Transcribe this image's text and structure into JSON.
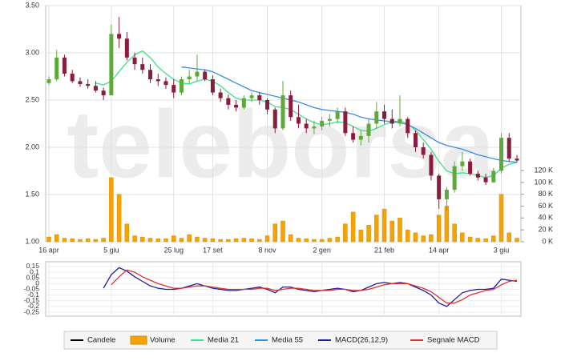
{
  "watermark": "teleborsa",
  "chart_data": [
    {
      "type": "candlestick",
      "categories": [
        "16 apr",
        null,
        null,
        null,
        null,
        null,
        null,
        null,
        "5 giu",
        null,
        null,
        null,
        null,
        null,
        null,
        null,
        "25 lug",
        null,
        null,
        null,
        null,
        "17 set",
        null,
        null,
        null,
        null,
        null,
        null,
        "8 nov",
        null,
        null,
        null,
        null,
        null,
        null,
        "2 gen",
        null,
        null,
        null,
        null,
        null,
        null,
        null,
        "21 feb",
        null,
        null,
        null,
        null,
        null,
        null,
        "14 apr",
        null,
        null,
        null,
        null,
        null,
        null,
        null,
        "3 giu",
        null,
        null
      ],
      "ylim": [
        1,
        3.5
      ],
      "yticks": [
        {
          "value": 1,
          "label": "1.00"
        },
        {
          "value": 1.5,
          "label": "1.50"
        },
        {
          "value": 2,
          "label": "2.00"
        },
        {
          "value": 2.5,
          "label": "2.50"
        },
        {
          "value": 3,
          "label": "3.00"
        },
        {
          "value": 3.5,
          "label": "3.50"
        }
      ],
      "y2lim": [
        0,
        398
      ],
      "y2ticks": [
        {
          "value": 0,
          "label": "0 K"
        },
        {
          "value": 20,
          "label": "20 K"
        },
        {
          "value": 40,
          "label": "40 K"
        },
        {
          "value": 60,
          "label": "60 K"
        },
        {
          "value": 80,
          "label": "80 K"
        },
        {
          "value": 100,
          "label": "100 K"
        },
        {
          "value": 120,
          "label": "120 K"
        }
      ],
      "grid": true,
      "up_color": "#5fa83a",
      "down_color": "#8a1c3c",
      "series": [
        {
          "name": "Candele",
          "color": "#000000",
          "open": [
            2.68,
            2.72,
            2.95,
            2.78,
            2.7,
            2.67,
            2.65,
            2.6,
            2.55,
            3.2,
            3.15,
            2.95,
            2.88,
            2.82,
            2.72,
            2.7,
            2.66,
            2.58,
            2.72,
            2.75,
            2.8,
            2.72,
            2.58,
            2.52,
            2.45,
            2.42,
            2.52,
            2.55,
            2.5,
            2.4,
            2.2,
            2.55,
            2.32,
            2.25,
            2.2,
            2.22,
            2.28,
            2.3,
            2.38,
            2.15,
            2.08,
            2.12,
            2.25,
            2.38,
            2.3,
            2.25,
            2.3,
            2.15,
            2.0,
            1.92,
            1.7,
            1.45,
            1.55,
            1.8,
            1.85,
            1.72,
            1.68,
            1.63,
            1.75,
            2.1,
            1.88
          ],
          "high": [
            2.75,
            3.03,
            2.98,
            2.82,
            2.74,
            2.72,
            2.7,
            2.63,
            3.3,
            3.38,
            3.22,
            3.0,
            2.95,
            2.88,
            2.78,
            2.74,
            2.72,
            2.75,
            2.82,
            2.98,
            2.82,
            2.76,
            2.62,
            2.56,
            2.5,
            2.55,
            2.58,
            2.58,
            2.52,
            2.42,
            2.7,
            2.6,
            2.45,
            2.3,
            2.28,
            2.32,
            2.35,
            2.42,
            2.42,
            2.22,
            2.18,
            2.3,
            2.48,
            2.45,
            2.4,
            2.55,
            2.32,
            2.18,
            2.05,
            1.95,
            1.72,
            1.58,
            1.85,
            1.95,
            1.88,
            1.75,
            1.72,
            1.78,
            2.15,
            2.15,
            1.92
          ],
          "low": [
            2.66,
            2.7,
            2.75,
            2.68,
            2.64,
            2.62,
            2.58,
            2.5,
            2.55,
            3.05,
            2.92,
            2.82,
            2.78,
            2.68,
            2.65,
            2.62,
            2.52,
            2.55,
            2.68,
            2.7,
            2.7,
            2.55,
            2.48,
            2.4,
            2.38,
            2.4,
            2.48,
            2.45,
            2.35,
            2.15,
            2.18,
            2.28,
            2.2,
            2.15,
            2.14,
            2.18,
            2.22,
            2.25,
            2.12,
            2.05,
            2.02,
            2.05,
            2.2,
            2.25,
            2.2,
            2.22,
            2.1,
            1.95,
            1.88,
            1.65,
            1.35,
            1.33,
            1.52,
            1.75,
            1.7,
            1.65,
            1.6,
            1.62,
            1.72,
            1.85,
            1.84
          ],
          "close": [
            2.72,
            2.95,
            2.78,
            2.7,
            2.67,
            2.65,
            2.6,
            2.55,
            3.2,
            3.15,
            2.95,
            2.88,
            2.82,
            2.72,
            2.7,
            2.66,
            2.58,
            2.72,
            2.75,
            2.8,
            2.72,
            2.58,
            2.52,
            2.45,
            2.42,
            2.52,
            2.55,
            2.5,
            2.4,
            2.2,
            2.55,
            2.32,
            2.25,
            2.2,
            2.22,
            2.28,
            2.3,
            2.38,
            2.15,
            2.08,
            2.12,
            2.25,
            2.38,
            2.3,
            2.25,
            2.3,
            2.15,
            2.0,
            1.92,
            1.7,
            1.45,
            1.55,
            1.8,
            1.85,
            1.72,
            1.68,
            1.63,
            1.75,
            2.1,
            1.88,
            1.86
          ]
        },
        {
          "name": "Volume",
          "color": "#f5a300",
          "axis": "y2",
          "values": [
            8,
            12,
            6,
            5,
            4,
            5,
            4,
            6,
            108,
            80,
            30,
            10,
            8,
            6,
            5,
            5,
            10,
            6,
            12,
            8,
            6,
            5,
            4,
            4,
            5,
            6,
            5,
            4,
            10,
            30,
            35,
            12,
            6,
            5,
            4,
            4,
            6,
            8,
            30,
            50,
            20,
            28,
            45,
            55,
            35,
            40,
            20,
            15,
            10,
            12,
            45,
            60,
            30,
            15,
            8,
            6,
            5,
            10,
            80,
            15,
            6
          ]
        },
        {
          "name": "Media 21",
          "color": "#3ee08a",
          "values": [
            null,
            null,
            null,
            null,
            null,
            null,
            2.68,
            2.66,
            2.7,
            2.8,
            2.9,
            2.98,
            3.02,
            2.95,
            2.85,
            2.78,
            2.72,
            2.68,
            2.67,
            2.7,
            2.72,
            2.7,
            2.65,
            2.58,
            2.52,
            2.5,
            2.5,
            2.5,
            2.48,
            2.43,
            2.42,
            2.4,
            2.35,
            2.3,
            2.26,
            2.24,
            2.25,
            2.27,
            2.26,
            2.22,
            2.18,
            2.17,
            2.2,
            2.24,
            2.27,
            2.28,
            2.25,
            2.18,
            2.08,
            1.98,
            1.85,
            1.75,
            1.72,
            1.73,
            1.72,
            1.7,
            1.68,
            1.7,
            1.78,
            1.82,
            1.84
          ]
        },
        {
          "name": "Media 55",
          "color": "#3a8ee0",
          "values": [
            null,
            null,
            null,
            null,
            null,
            null,
            null,
            null,
            null,
            null,
            null,
            null,
            null,
            null,
            null,
            null,
            null,
            2.85,
            2.84,
            2.83,
            2.82,
            2.8,
            2.76,
            2.72,
            2.68,
            2.64,
            2.6,
            2.58,
            2.56,
            2.54,
            2.52,
            2.5,
            2.48,
            2.45,
            2.42,
            2.4,
            2.39,
            2.38,
            2.37,
            2.35,
            2.32,
            2.3,
            2.29,
            2.28,
            2.27,
            2.26,
            2.24,
            2.2,
            2.15,
            2.1,
            2.05,
            2.02,
            2.0,
            1.98,
            1.95,
            1.92,
            1.9,
            1.88,
            1.86,
            1.85,
            1.84
          ]
        }
      ]
    },
    {
      "type": "line",
      "ylim": [
        -0.285,
        0.192
      ],
      "yticks": [
        {
          "value": -0.25,
          "label": "-0,25"
        },
        {
          "value": -0.2,
          "label": "-0,2"
        },
        {
          "value": -0.15,
          "label": "-0,15"
        },
        {
          "value": -0.1,
          "label": "-0,1"
        },
        {
          "value": -0.05,
          "label": "-0,05"
        },
        0,
        {
          "value": 0.05,
          "label": "0,05"
        },
        {
          "value": 0.1,
          "label": "0,1"
        },
        {
          "value": 0.15,
          "label": "0,15"
        }
      ],
      "grid": true,
      "series": [
        {
          "name": "MACD(26,12,9)",
          "color": "#1c1ca0",
          "values": [
            null,
            null,
            null,
            null,
            null,
            null,
            null,
            -0.04,
            0.08,
            0.14,
            0.11,
            0.06,
            0.02,
            -0.02,
            -0.04,
            -0.05,
            -0.05,
            -0.04,
            -0.02,
            0.0,
            -0.02,
            -0.04,
            -0.05,
            -0.06,
            -0.06,
            -0.05,
            -0.04,
            -0.03,
            -0.05,
            -0.08,
            -0.03,
            -0.03,
            -0.05,
            -0.06,
            -0.07,
            -0.06,
            -0.05,
            -0.04,
            -0.05,
            -0.07,
            -0.06,
            -0.03,
            0.0,
            0.01,
            0.0,
            0.01,
            0.0,
            -0.03,
            -0.06,
            -0.1,
            -0.17,
            -0.2,
            -0.14,
            -0.08,
            -0.06,
            -0.05,
            -0.05,
            -0.04,
            0.04,
            0.03,
            0.02
          ]
        },
        {
          "name": "Segnale MACD",
          "color": "#e03030",
          "values": [
            null,
            null,
            null,
            null,
            null,
            null,
            null,
            null,
            -0.01,
            0.06,
            0.12,
            0.1,
            0.06,
            0.03,
            0.0,
            -0.02,
            -0.04,
            -0.04,
            -0.03,
            -0.02,
            -0.02,
            -0.03,
            -0.04,
            -0.05,
            -0.05,
            -0.05,
            -0.05,
            -0.04,
            -0.04,
            -0.06,
            -0.05,
            -0.04,
            -0.04,
            -0.05,
            -0.06,
            -0.06,
            -0.06,
            -0.05,
            -0.05,
            -0.06,
            -0.06,
            -0.05,
            -0.03,
            -0.01,
            0.0,
            0.0,
            0.0,
            -0.02,
            -0.04,
            -0.07,
            -0.12,
            -0.17,
            -0.17,
            -0.14,
            -0.1,
            -0.08,
            -0.06,
            -0.05,
            -0.01,
            0.02,
            0.03
          ]
        }
      ]
    }
  ]
}
